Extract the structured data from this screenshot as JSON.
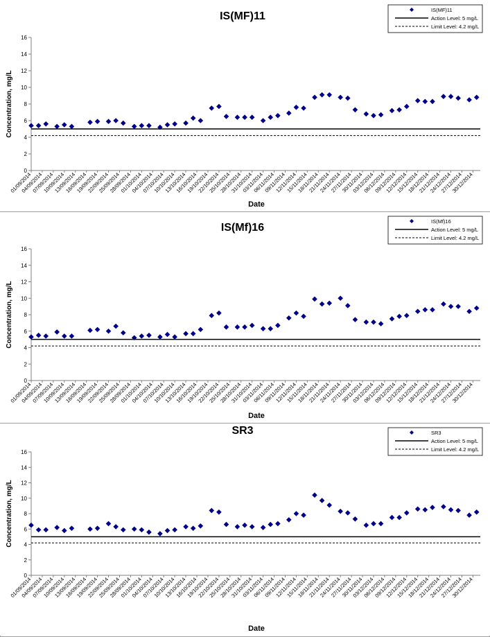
{
  "dates": [
    "01/09/2014",
    "04/09/2014",
    "07/09/2014",
    "10/09/2014",
    "13/09/2014",
    "16/09/2014",
    "19/09/2014",
    "22/09/2014",
    "25/09/2014",
    "28/09/2014",
    "01/10/2014",
    "04/10/2014",
    "07/10/2014",
    "10/10/2014",
    "13/10/2014",
    "16/10/2014",
    "19/10/2014",
    "22/10/2014",
    "25/10/2014",
    "28/10/2014",
    "31/10/2014",
    "03/11/2014",
    "06/11/2014",
    "09/11/2014",
    "12/11/2014",
    "15/11/2014",
    "18/11/2014",
    "21/11/2014",
    "24/11/2014",
    "27/11/2014",
    "30/11/2014",
    "03/12/2014",
    "06/12/2014",
    "09/12/2014",
    "12/12/2014",
    "15/12/2014",
    "18/12/2014",
    "21/12/2014",
    "24/12/2014",
    "27/12/2014",
    "30/12/2014"
  ],
  "chart_data": [
    {
      "type": "scatter",
      "title": "IS(MF)11",
      "xlabel": "Date",
      "ylabel": "Concentration, mg/L",
      "ylim": [
        0,
        16
      ],
      "yticks": [
        0,
        2,
        4,
        6,
        8,
        10,
        12,
        14,
        16
      ],
      "xlim": [
        "01/09/2014",
        "01/01/2015"
      ],
      "legend": "top-right",
      "grid": false,
      "series": [
        {
          "name": "IS(MF)11",
          "color": "#00008b",
          "marker": "diamond",
          "x": [
            "01/09/2014",
            "03/09/2014",
            "05/09/2014",
            "08/09/2014",
            "10/09/2014",
            "12/09/2014",
            "17/09/2014",
            "19/09/2014",
            "22/09/2014",
            "24/09/2014",
            "26/09/2014",
            "29/09/2014",
            "01/10/2014",
            "03/10/2014",
            "06/10/2014",
            "08/10/2014",
            "10/10/2014",
            "13/10/2014",
            "15/10/2014",
            "17/10/2014",
            "20/10/2014",
            "22/10/2014",
            "24/10/2014",
            "27/10/2014",
            "29/10/2014",
            "31/10/2014",
            "03/11/2014",
            "05/11/2014",
            "07/11/2014",
            "10/11/2014",
            "12/11/2014",
            "14/11/2014",
            "17/11/2014",
            "19/11/2014",
            "21/11/2014",
            "24/11/2014",
            "26/11/2014",
            "28/11/2014",
            "01/12/2014",
            "03/12/2014",
            "05/12/2014",
            "08/12/2014",
            "10/12/2014",
            "12/12/2014",
            "15/12/2014",
            "17/12/2014",
            "19/12/2014",
            "22/12/2014",
            "24/12/2014",
            "26/12/2014",
            "29/12/2014",
            "31/12/2014"
          ],
          "y": [
            5.4,
            5.4,
            5.6,
            5.3,
            5.5,
            5.3,
            5.8,
            5.9,
            5.9,
            6.0,
            5.7,
            5.3,
            5.4,
            5.4,
            5.2,
            5.5,
            5.6,
            5.7,
            6.3,
            6.0,
            7.5,
            7.7,
            6.5,
            6.4,
            6.4,
            6.4,
            6.0,
            6.4,
            6.6,
            6.9,
            7.6,
            7.5,
            8.8,
            9.1,
            9.1,
            8.8,
            8.7,
            7.3,
            6.8,
            6.6,
            6.7,
            7.2,
            7.3,
            7.7,
            8.4,
            8.3,
            8.3,
            8.9,
            8.9,
            8.7,
            8.5,
            8.8
          ]
        },
        {
          "name": "Action Level: 5 mg/L",
          "color": "#000000",
          "style": "solid",
          "y": 5
        },
        {
          "name": "Limit Level: 4.2 mg/L",
          "color": "#000000",
          "style": "dashed",
          "y": 4.2
        }
      ]
    },
    {
      "type": "scatter",
      "title": "IS(Mf)16",
      "xlabel": "Date",
      "ylabel": "Concentration, mg/L",
      "ylim": [
        0,
        16
      ],
      "yticks": [
        0,
        2,
        4,
        6,
        8,
        10,
        12,
        14,
        16
      ],
      "xlim": [
        "01/09/2014",
        "01/01/2015"
      ],
      "legend": "top-right",
      "grid": false,
      "series": [
        {
          "name": "IS(Mf)16",
          "color": "#00008b",
          "marker": "diamond",
          "x": [
            "01/09/2014",
            "03/09/2014",
            "05/09/2014",
            "08/09/2014",
            "10/09/2014",
            "12/09/2014",
            "17/09/2014",
            "19/09/2014",
            "22/09/2014",
            "24/09/2014",
            "26/09/2014",
            "29/09/2014",
            "01/10/2014",
            "03/10/2014",
            "06/10/2014",
            "08/10/2014",
            "10/10/2014",
            "13/10/2014",
            "15/10/2014",
            "17/10/2014",
            "20/10/2014",
            "22/10/2014",
            "24/10/2014",
            "27/10/2014",
            "29/10/2014",
            "31/10/2014",
            "03/11/2014",
            "05/11/2014",
            "07/11/2014",
            "10/11/2014",
            "12/11/2014",
            "14/11/2014",
            "17/11/2014",
            "19/11/2014",
            "21/11/2014",
            "24/11/2014",
            "26/11/2014",
            "28/11/2014",
            "01/12/2014",
            "03/12/2014",
            "05/12/2014",
            "08/12/2014",
            "10/12/2014",
            "12/12/2014",
            "15/12/2014",
            "17/12/2014",
            "19/12/2014",
            "22/12/2014",
            "24/12/2014",
            "26/12/2014",
            "29/12/2014",
            "31/12/2014"
          ],
          "y": [
            5.3,
            5.5,
            5.4,
            5.9,
            5.4,
            5.4,
            6.1,
            6.2,
            6.0,
            6.6,
            5.8,
            5.2,
            5.4,
            5.5,
            5.3,
            5.6,
            5.3,
            5.7,
            5.7,
            6.2,
            7.9,
            8.2,
            6.5,
            6.5,
            6.5,
            6.7,
            6.3,
            6.3,
            6.7,
            7.6,
            8.2,
            7.8,
            9.9,
            9.3,
            9.4,
            10.0,
            9.1,
            7.4,
            7.1,
            7.1,
            6.9,
            7.5,
            7.8,
            7.9,
            8.4,
            8.6,
            8.6,
            9.3,
            9.0,
            9.0,
            8.4,
            8.8
          ]
        },
        {
          "name": "Action Level: 5 mg/L",
          "color": "#000000",
          "style": "solid",
          "y": 5
        },
        {
          "name": "Limit Level: 4.2 mg/L",
          "color": "#000000",
          "style": "dashed",
          "y": 4.2
        }
      ]
    },
    {
      "type": "scatter",
      "title": "SR3",
      "xlabel": "Date",
      "ylabel": "Concentration, mg/L",
      "ylim": [
        0,
        16
      ],
      "yticks": [
        0,
        2,
        4,
        6,
        8,
        10,
        12,
        14,
        16
      ],
      "xlim": [
        "01/09/2014",
        "01/01/2015"
      ],
      "legend": "top-right",
      "grid": false,
      "series": [
        {
          "name": "SR3",
          "color": "#00008b",
          "marker": "diamond",
          "x": [
            "01/09/2014",
            "03/09/2014",
            "05/09/2014",
            "08/09/2014",
            "10/09/2014",
            "12/09/2014",
            "17/09/2014",
            "19/09/2014",
            "22/09/2014",
            "24/09/2014",
            "26/09/2014",
            "29/09/2014",
            "01/10/2014",
            "03/10/2014",
            "06/10/2014",
            "08/10/2014",
            "10/10/2014",
            "13/10/2014",
            "15/10/2014",
            "17/10/2014",
            "20/10/2014",
            "22/10/2014",
            "24/10/2014",
            "27/10/2014",
            "29/10/2014",
            "31/10/2014",
            "03/11/2014",
            "05/11/2014",
            "07/11/2014",
            "10/11/2014",
            "12/11/2014",
            "14/11/2014",
            "17/11/2014",
            "19/11/2014",
            "21/11/2014",
            "24/11/2014",
            "26/11/2014",
            "28/11/2014",
            "01/12/2014",
            "03/12/2014",
            "05/12/2014",
            "08/12/2014",
            "10/12/2014",
            "12/12/2014",
            "15/12/2014",
            "17/12/2014",
            "19/12/2014",
            "22/12/2014",
            "24/12/2014",
            "26/12/2014",
            "29/12/2014",
            "31/12/2014"
          ],
          "y": [
            6.5,
            5.9,
            5.9,
            6.2,
            5.8,
            6.1,
            6.0,
            6.1,
            6.7,
            6.3,
            5.9,
            6.0,
            5.9,
            5.6,
            5.4,
            5.8,
            5.9,
            6.3,
            6.1,
            6.4,
            8.4,
            8.2,
            6.6,
            6.3,
            6.5,
            6.3,
            6.2,
            6.6,
            6.7,
            7.2,
            8.0,
            7.8,
            10.4,
            9.7,
            9.1,
            8.3,
            8.1,
            7.3,
            6.5,
            6.7,
            6.7,
            7.5,
            7.5,
            8.1,
            8.6,
            8.5,
            8.8,
            8.9,
            8.5,
            8.4,
            7.8,
            8.2
          ]
        },
        {
          "name": "Action Level: 5 mg/L",
          "color": "#000000",
          "style": "solid",
          "y": 5
        },
        {
          "name": "Limit Level: 4.2 mg/L",
          "color": "#000000",
          "style": "dashed",
          "y": 4.2
        }
      ]
    }
  ]
}
